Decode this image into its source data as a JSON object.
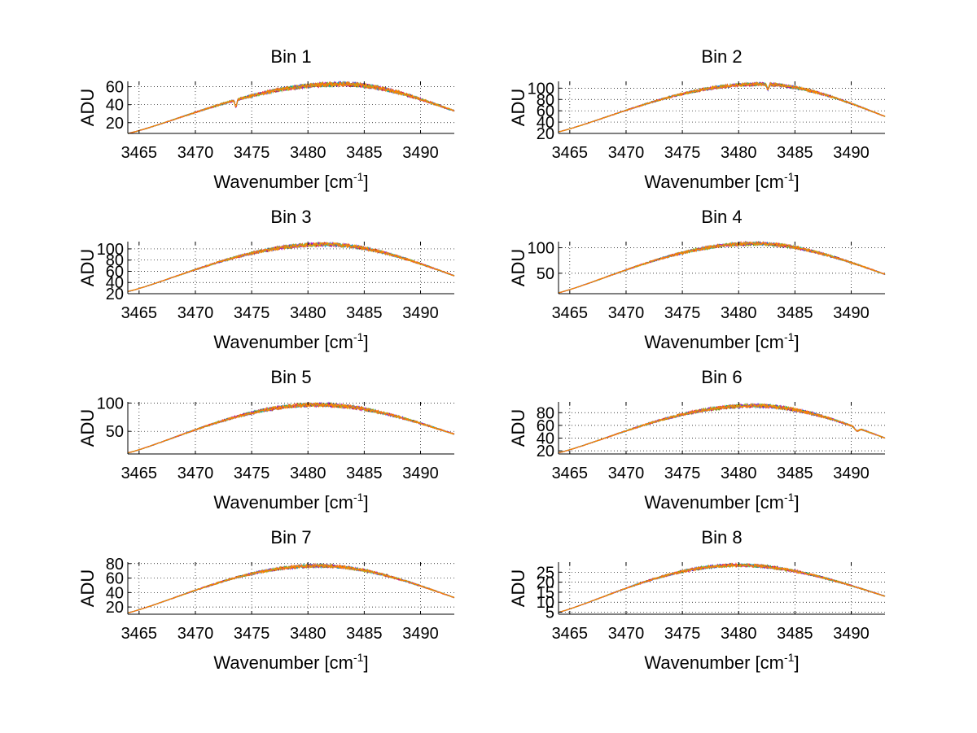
{
  "chart_data": {
    "type": "line",
    "layout": "4x2 grid of subplots",
    "xlabel": "Wavenumber [cm",
    "xlabel_superscript": "-1",
    "xlabel_suffix": "]",
    "ylabel": "ADU",
    "xlim": [
      3464,
      3493
    ],
    "xticks": [
      3465,
      3470,
      3475,
      3480,
      3485,
      3490
    ],
    "grid": true,
    "series_colors": [
      "#0000ff",
      "#008000",
      "#ff0000",
      "#00bfbf",
      "#bf00bf",
      "#bfbf00",
      "#ff7f00"
    ],
    "panels": [
      {
        "title": "Bin 1",
        "ylim": [
          8,
          66
        ],
        "yticks": [
          20,
          40,
          60
        ],
        "start": 8,
        "peak": 63,
        "end": 33,
        "peak_x": 3483,
        "dip": {
          "x": 3473.6,
          "depth": 8
        },
        "dip2": null,
        "noise": 2.2
      },
      {
        "title": "Bin 2",
        "ylim": [
          20,
          112
        ],
        "yticks": [
          20,
          40,
          60,
          80,
          100
        ],
        "start": 23,
        "peak": 107,
        "end": 50,
        "peak_x": 3482,
        "dip": {
          "x": 3482.6,
          "depth": 9
        },
        "dip2": null,
        "noise": 2.6
      },
      {
        "title": "Bin 3",
        "ylim": [
          20,
          113
        ],
        "yticks": [
          20,
          40,
          60,
          80,
          100
        ],
        "start": 24,
        "peak": 108,
        "end": 52,
        "peak_x": 3481.5,
        "dip": null,
        "dip2": null,
        "noise": 3
      },
      {
        "title": "Bin 4",
        "ylim": [
          10,
          112
        ],
        "yticks": [
          50,
          100
        ],
        "start": 12,
        "peak": 108,
        "end": 48,
        "peak_x": 3481.5,
        "dip": null,
        "dip2": null,
        "noise": 3
      },
      {
        "title": "Bin 5",
        "ylim": [
          10,
          102
        ],
        "yticks": [
          50,
          100
        ],
        "start": 12,
        "peak": 97,
        "end": 45,
        "peak_x": 3481,
        "dip": null,
        "dip2": null,
        "noise": 3
      },
      {
        "title": "Bin 6",
        "ylim": [
          15,
          97
        ],
        "yticks": [
          20,
          40,
          60,
          80
        ],
        "start": 17,
        "peak": 91,
        "end": 40,
        "peak_x": 3481.5,
        "dip": null,
        "dip2": {
          "x": 3490.5,
          "depth": 5
        },
        "noise": 2.6
      },
      {
        "title": "Bin 7",
        "ylim": [
          10,
          82
        ],
        "yticks": [
          20,
          40,
          60,
          80
        ],
        "start": 12,
        "peak": 77,
        "end": 33,
        "peak_x": 3481,
        "dip": null,
        "dip2": null,
        "noise": 2
      },
      {
        "title": "Bin 8",
        "ylim": [
          4,
          30
        ],
        "yticks": [
          5,
          10,
          15,
          20,
          25
        ],
        "start": 5,
        "peak": 28.5,
        "end": 13,
        "peak_x": 3480,
        "dip": null,
        "dip2": null,
        "noise": 0.7
      }
    ]
  }
}
